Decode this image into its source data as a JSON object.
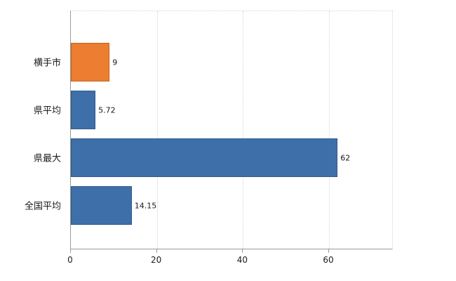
{
  "chart_data": {
    "type": "bar",
    "orientation": "horizontal",
    "title": "",
    "xlabel": "",
    "ylabel": "",
    "categories": [
      "横手市",
      "県平均",
      "県最大",
      "全国平均"
    ],
    "values": [
      9,
      5.72,
      62,
      14.15
    ],
    "value_labels": [
      "9",
      "5.72",
      "62",
      "14.15"
    ],
    "bar_colors": [
      "#ED7D31",
      "#3E6FA8",
      "#3E6FA8",
      "#3E6FA8"
    ],
    "bar_border_colors": [
      "#c2631f",
      "#2f5a8c",
      "#2f5a8c",
      "#2f5a8c"
    ],
    "xlim": [
      0,
      75
    ],
    "xticks": [
      0,
      20,
      40,
      60
    ],
    "grid": "vertical dotted lines at x ticks",
    "legend": "none"
  },
  "colors": {
    "background": "#ffffff",
    "axis_line": "#9a9a9a",
    "grid_line": "#d4d4d4",
    "text": "#1a1a1a",
    "accent_orange": "#ED7D31",
    "accent_blue": "#3E6FA8"
  }
}
